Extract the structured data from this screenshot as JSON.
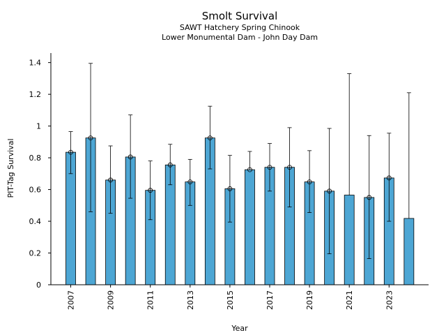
{
  "chart_data": {
    "type": "bar",
    "title": "Smolt Survival",
    "subtitle_lines": [
      "SAWT Hatchery Spring Chinook",
      "Lower Monumental Dam - John Day Dam"
    ],
    "xlabel": "Year",
    "ylabel": "PIT-Tag Survival",
    "categories": [
      "2007",
      "2008",
      "2009",
      "2010",
      "2011",
      "2012",
      "2013",
      "2014",
      "2015",
      "2016",
      "2017",
      "2018",
      "2019",
      "2020",
      "2021",
      "2022",
      "2023",
      "2024"
    ],
    "x_tick_labels": [
      "2007",
      "2009",
      "2011",
      "2013",
      "2015",
      "2017",
      "2019",
      "2021",
      "2023"
    ],
    "values": [
      0.835,
      0.925,
      0.66,
      0.805,
      0.595,
      0.755,
      0.648,
      0.925,
      0.605,
      0.725,
      0.74,
      0.74,
      0.648,
      0.59,
      0.565,
      0.55,
      0.673,
      0.418
    ],
    "error_lower": [
      0.7,
      0.46,
      0.45,
      0.545,
      0.41,
      0.63,
      0.5,
      0.73,
      0.395,
      null,
      0.59,
      0.49,
      0.455,
      0.195,
      null,
      0.165,
      0.4,
      null
    ],
    "error_upper": [
      0.965,
      1.395,
      0.875,
      1.07,
      0.78,
      0.885,
      0.79,
      1.125,
      0.815,
      0.84,
      0.89,
      0.99,
      0.845,
      0.985,
      1.33,
      0.94,
      0.955,
      1.21
    ],
    "markers": [
      true,
      true,
      true,
      true,
      true,
      true,
      true,
      true,
      true,
      true,
      true,
      true,
      true,
      true,
      false,
      true,
      true,
      false
    ],
    "ylim": [
      0,
      1.46
    ],
    "yticks": [
      0,
      0.2,
      0.4,
      0.6,
      0.8,
      1,
      1.2,
      1.4
    ],
    "ytick_labels": [
      "0",
      "0.2",
      "0.4",
      "0.6",
      "0.8",
      "1",
      "1.2",
      "1.4"
    ],
    "bar_color": "#4da6d4",
    "grid": false,
    "legend": "none"
  }
}
